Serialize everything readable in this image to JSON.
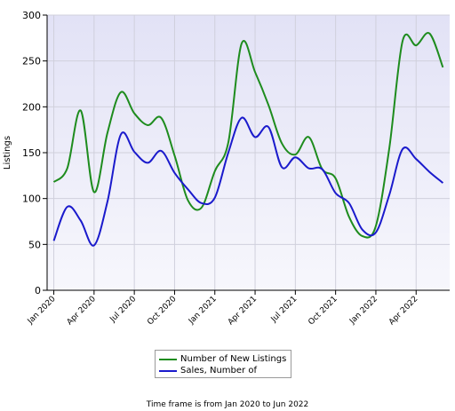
{
  "chart_data": {
    "type": "line",
    "x": [
      "Jan 2020",
      "Feb 2020",
      "Mar 2020",
      "Apr 2020",
      "May 2020",
      "Jun 2020",
      "Jul 2020",
      "Aug 2020",
      "Sep 2020",
      "Oct 2020",
      "Nov 2020",
      "Dec 2020",
      "Jan 2021",
      "Feb 2021",
      "Mar 2021",
      "Apr 2021",
      "May 2021",
      "Jun 2021",
      "Jul 2021",
      "Aug 2021",
      "Sep 2021",
      "Oct 2021",
      "Nov 2021",
      "Dec 2021",
      "Jan 2022",
      "Feb 2022",
      "Mar 2022",
      "Apr 2022",
      "May 2022",
      "Jun 2022"
    ],
    "x_tick_labels": [
      "Jan 2020",
      "Apr 2020",
      "Jul 2020",
      "Oct 2020",
      "Jan 2021",
      "Apr 2021",
      "Jul 2021",
      "Oct 2021",
      "Jan 2022",
      "Apr 2022"
    ],
    "series": [
      {
        "name": "Number of New Listings",
        "color": "#1e8c1e",
        "values": [
          118,
          133,
          196,
          107,
          172,
          216,
          193,
          180,
          188,
          147,
          98,
          90,
          130,
          161,
          269,
          238,
          202,
          160,
          148,
          167,
          132,
          122,
          80,
          59,
          70,
          155,
          272,
          267,
          280,
          243
        ]
      },
      {
        "name": "Sales, Number of",
        "color": "#1a1acc",
        "values": [
          54,
          91,
          76,
          49,
          97,
          170,
          151,
          139,
          152,
          128,
          110,
          95,
          101,
          150,
          188,
          167,
          178,
          134,
          145,
          133,
          132,
          106,
          95,
          66,
          63,
          104,
          154,
          143,
          129,
          117
        ]
      }
    ],
    "ylabel": "Listings",
    "xlabel": "",
    "ylim": [
      0,
      300
    ],
    "yticks": [
      0,
      50,
      100,
      150,
      200,
      250,
      300
    ],
    "grid": true,
    "legend": "bottom-center",
    "background": "#ebebf8"
  },
  "footer": {
    "timeframe_text": "Time frame is from Jan 2020 to Jun 2022"
  }
}
